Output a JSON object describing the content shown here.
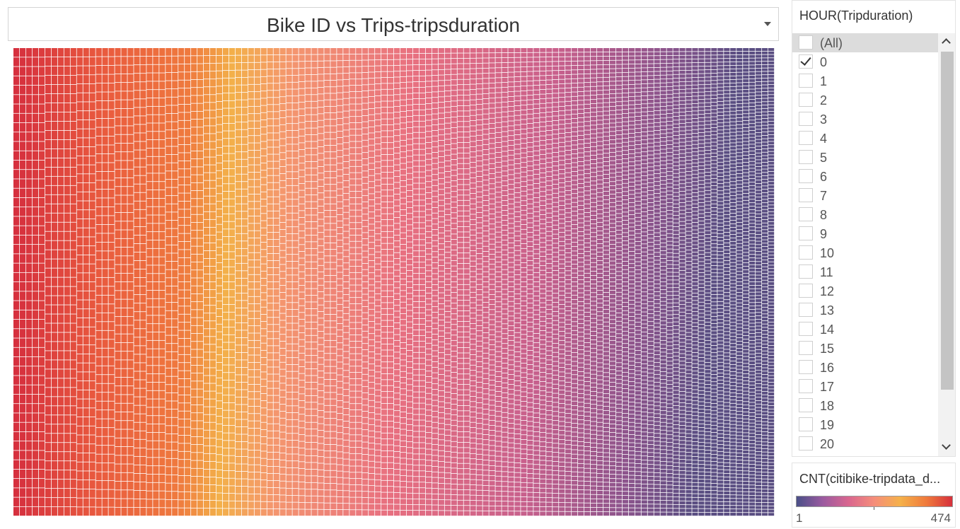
{
  "title": "Bike ID vs Trips-tripsduration",
  "filter": {
    "title": "HOUR(Tripduration)",
    "items": [
      {
        "label": "(All)",
        "checked": false
      },
      {
        "label": "0",
        "checked": true
      },
      {
        "label": "1",
        "checked": false
      },
      {
        "label": "2",
        "checked": false
      },
      {
        "label": "3",
        "checked": false
      },
      {
        "label": "4",
        "checked": false
      },
      {
        "label": "5",
        "checked": false
      },
      {
        "label": "6",
        "checked": false
      },
      {
        "label": "7",
        "checked": false
      },
      {
        "label": "8",
        "checked": false
      },
      {
        "label": "9",
        "checked": false
      },
      {
        "label": "10",
        "checked": false
      },
      {
        "label": "11",
        "checked": false
      },
      {
        "label": "12",
        "checked": false
      },
      {
        "label": "13",
        "checked": false
      },
      {
        "label": "14",
        "checked": false
      },
      {
        "label": "15",
        "checked": false
      },
      {
        "label": "16",
        "checked": false
      },
      {
        "label": "17",
        "checked": false
      },
      {
        "label": "18",
        "checked": false
      },
      {
        "label": "19",
        "checked": false
      },
      {
        "label": "20",
        "checked": false
      }
    ]
  },
  "legend": {
    "title": "CNT(citibike-tripdata_d...",
    "min": "1",
    "max": "474",
    "colors": [
      "#4a4f87",
      "#9a5aa0",
      "#d9668f",
      "#f58e7a",
      "#f5b14a",
      "#ef7a3c",
      "#d6303c"
    ]
  },
  "chart_data": {
    "type": "heatmap",
    "title": "Bike ID vs Trips-tripsduration",
    "measure": "CNT(citibike-tripdata_d...",
    "color_range": [
      1,
      474
    ],
    "color_stops": [
      "#4a4f87",
      "#9a5aa0",
      "#d9668f",
      "#f58e7a",
      "#f5b14a",
      "#ef7a3c",
      "#d6303c"
    ]
  }
}
